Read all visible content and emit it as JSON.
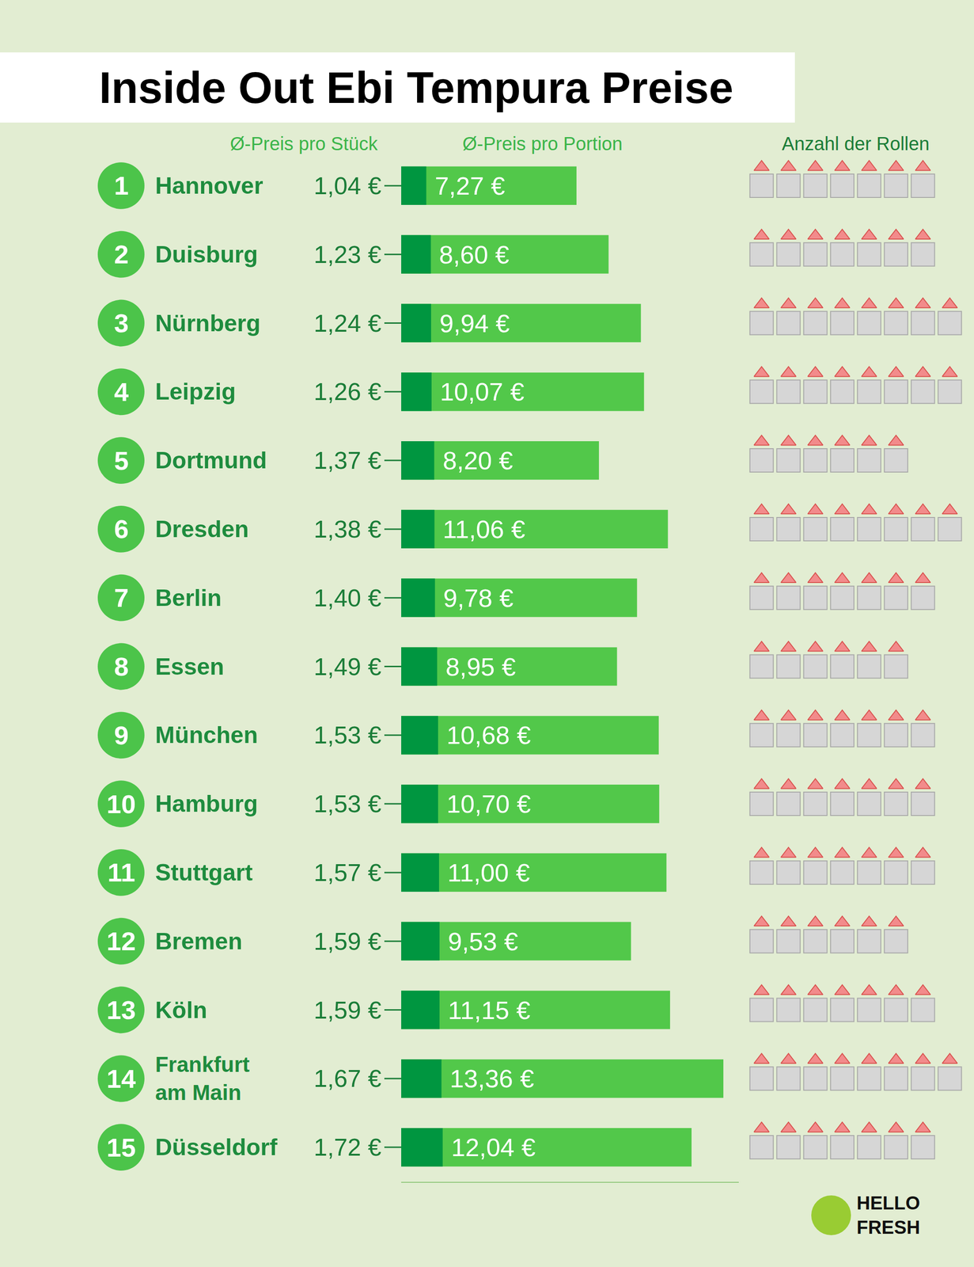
{
  "chart_data": {
    "type": "bar",
    "title": "Inside Out Ebi Tempura Preise",
    "orientation": "horizontal",
    "data_labels": true,
    "tick_labels": false,
    "grid": false,
    "xlim": [
      0,
      14
    ],
    "categories": [
      "Hannover",
      "Duisburg",
      "Nürnberg",
      "Leipzig",
      "Dortmund",
      "Dresden",
      "Berlin",
      "Essen",
      "München",
      "Hamburg",
      "Stuttgart",
      "Bremen",
      "Köln",
      "Frankfurt am Main",
      "Düsseldorf"
    ],
    "ranks": [
      1,
      2,
      3,
      4,
      5,
      6,
      7,
      8,
      9,
      10,
      11,
      12,
      13,
      14,
      15
    ],
    "series": [
      {
        "name": "Ø-Preis pro Stück",
        "color": "#009640",
        "values": [
          1.04,
          1.23,
          1.24,
          1.26,
          1.37,
          1.38,
          1.4,
          1.49,
          1.53,
          1.53,
          1.57,
          1.59,
          1.59,
          1.67,
          1.72
        ],
        "value_labels": [
          "1,04 €",
          "1,23 €",
          "1,24 €",
          "1,26 €",
          "1,37 €",
          "1,38 €",
          "1,40 €",
          "1,49 €",
          "1,53 €",
          "1,53 €",
          "1,57 €",
          "1,59 €",
          "1,59 €",
          "1,67 €",
          "1,72 €"
        ]
      },
      {
        "name": "Ø-Preis pro Portion",
        "color": "#52c84a",
        "values": [
          7.27,
          8.6,
          9.94,
          10.07,
          8.2,
          11.06,
          9.78,
          8.95,
          10.68,
          10.7,
          11.0,
          9.53,
          11.15,
          13.36,
          12.04
        ],
        "value_labels": [
          "7,27 €",
          "8,60 €",
          "9,94 €",
          "10,07 €",
          "8,20 €",
          "11,06 €",
          "9,78 €",
          "8,95 €",
          "10,68 €",
          "10,70 €",
          "11,00 €",
          "9,53 €",
          "11,15 €",
          "13,36 €",
          "12,04 €"
        ]
      }
    ],
    "rolls": {
      "name": "Anzahl der Rollen",
      "values": [
        7,
        7,
        8,
        8,
        6,
        8,
        7,
        6,
        7,
        7,
        7,
        6,
        7,
        8,
        7
      ]
    },
    "logo": "HELLO FRESH"
  }
}
